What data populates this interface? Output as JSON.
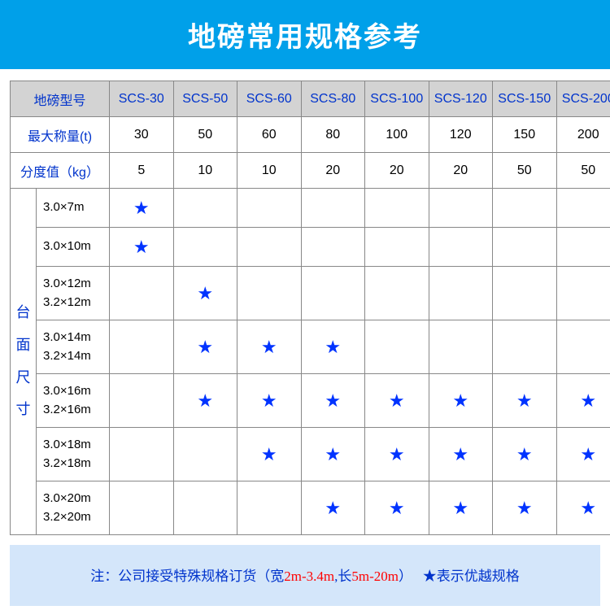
{
  "title": "地磅常用规格参考",
  "headers": {
    "model_label": "地磅型号",
    "models": [
      "SCS-30",
      "SCS-50",
      "SCS-60",
      "SCS-80",
      "SCS-100",
      "SCS-120",
      "SCS-150",
      "SCS-200"
    ],
    "max_weight_label": "最大称量(t)",
    "max_weight_values": [
      "30",
      "50",
      "60",
      "80",
      "100",
      "120",
      "150",
      "200"
    ],
    "division_label": "分度值（kg）",
    "division_values": [
      "5",
      "10",
      "10",
      "20",
      "20",
      "20",
      "50",
      "50"
    ],
    "size_group_label": [
      "台",
      "面",
      "尺",
      "寸"
    ]
  },
  "star": "★",
  "sizes": [
    {
      "label_lines": [
        "3.0×7m"
      ],
      "stars": [
        true,
        false,
        false,
        false,
        false,
        false,
        false,
        false
      ],
      "single": true
    },
    {
      "label_lines": [
        "3.0×10m"
      ],
      "stars": [
        true,
        false,
        false,
        false,
        false,
        false,
        false,
        false
      ],
      "single": true
    },
    {
      "label_lines": [
        "3.0×12m",
        "3.2×12m"
      ],
      "stars": [
        false,
        true,
        false,
        false,
        false,
        false,
        false,
        false
      ]
    },
    {
      "label_lines": [
        "3.0×14m",
        "3.2×14m"
      ],
      "stars": [
        false,
        true,
        true,
        true,
        false,
        false,
        false,
        false
      ]
    },
    {
      "label_lines": [
        "3.0×16m",
        "3.2×16m"
      ],
      "stars": [
        false,
        true,
        true,
        true,
        true,
        true,
        true,
        true
      ]
    },
    {
      "label_lines": [
        "3.0×18m",
        "3.2×18m"
      ],
      "stars": [
        false,
        false,
        true,
        true,
        true,
        true,
        true,
        true
      ]
    },
    {
      "label_lines": [
        "3.0×20m",
        "3.2×20m"
      ],
      "stars": [
        false,
        false,
        false,
        true,
        true,
        true,
        true,
        true
      ]
    }
  ],
  "footer": {
    "prefix": "注：公司接受特殊规格订货（宽",
    "width_range": "2m-3.4m",
    "mid": ",长",
    "length_range": "5m-20m",
    "suffix": "）",
    "star_note": "★表示优越规格"
  },
  "colors": {
    "title_bg": "#00a0e9",
    "header_bg": "#d3d3d3",
    "text_blue": "#0033cc",
    "star_blue": "#0033ff",
    "note_bg": "#d4e6fa",
    "note_red": "#ff0000",
    "border": "#888888"
  }
}
